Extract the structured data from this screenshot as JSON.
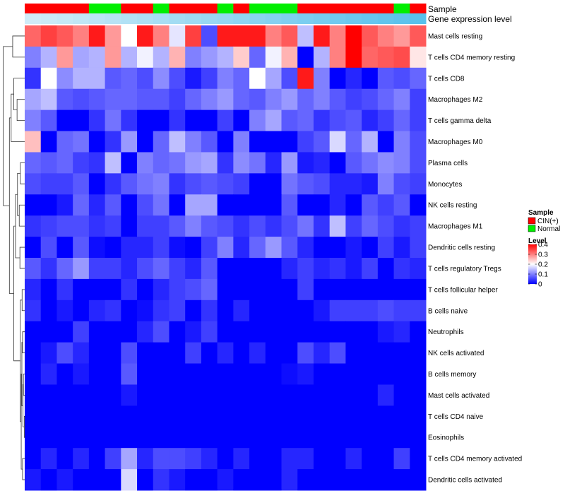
{
  "chart_data": {
    "type": "heatmap",
    "annotation_tracks": [
      {
        "key": "sample",
        "label": "Sample"
      },
      {
        "key": "gene",
        "label": "Gene expression level"
      }
    ],
    "rows": [
      "Mast cells resting",
      "T cells CD4 memory resting",
      "T cells CD8",
      "Macrophages M2",
      "T cells gamma delta",
      "Macrophages M0",
      "Plasma cells",
      "Monocytes",
      "NK cells resting",
      "Macrophages M1",
      "Dendritic cells resting",
      "T cells regulatory  Tregs",
      "T cells follicular helper",
      "B cells naive",
      "Neutrophils",
      "NK cells activated",
      "B cells memory",
      "Mast cells activated",
      "T cells CD4 naive",
      "Eosinophils",
      "T cells CD4 memory activated",
      "Dendritic cells activated"
    ],
    "sample_groups": [
      "CIN(+)",
      "CIN(+)",
      "CIN(+)",
      "CIN(+)",
      "Normal",
      "Normal",
      "CIN(+)",
      "CIN(+)",
      "Normal",
      "CIN(+)",
      "CIN(+)",
      "CIN(+)",
      "Normal",
      "CIN(+)",
      "Normal",
      "Normal",
      "Normal",
      "CIN(+)",
      "CIN(+)",
      "CIN(+)",
      "CIN(+)",
      "CIN(+)",
      "CIN(+)",
      "Normal",
      "CIN(+)"
    ],
    "gene_expression_levels": [
      0.02,
      0.06,
      0.1,
      0.14,
      0.18,
      0.22,
      0.26,
      0.3,
      0.34,
      0.38,
      0.42,
      0.46,
      0.5,
      0.54,
      0.58,
      0.62,
      0.66,
      0.7,
      0.74,
      0.78,
      0.82,
      0.86,
      0.9,
      0.94,
      0.98
    ],
    "values": [
      [
        0.32,
        0.35,
        0.33,
        0.3,
        0.38,
        0.28,
        0.2,
        0.38,
        0.3,
        0.18,
        0.35,
        0.06,
        0.38,
        0.38,
        0.38,
        0.3,
        0.33,
        0.15,
        0.38,
        0.3,
        0.4,
        0.33,
        0.3,
        0.28,
        0.33
      ],
      [
        0.1,
        0.14,
        0.28,
        0.13,
        0.14,
        0.28,
        0.14,
        0.19,
        0.14,
        0.26,
        0.1,
        0.12,
        0.14,
        0.24,
        0.08,
        0.19,
        0.26,
        0.0,
        0.14,
        0.3,
        0.4,
        0.32,
        0.33,
        0.34,
        0.22
      ],
      [
        0.04,
        0.2,
        0.11,
        0.14,
        0.14,
        0.07,
        0.08,
        0.06,
        0.11,
        0.06,
        0.02,
        0.05,
        0.1,
        0.08,
        0.2,
        0.13,
        0.06,
        0.38,
        0.1,
        0.0,
        0.03,
        0.0,
        0.07,
        0.06,
        0.08
      ],
      [
        0.13,
        0.15,
        0.07,
        0.06,
        0.07,
        0.08,
        0.08,
        0.07,
        0.07,
        0.05,
        0.08,
        0.1,
        0.12,
        0.08,
        0.07,
        0.1,
        0.12,
        0.08,
        0.1,
        0.07,
        0.05,
        0.06,
        0.08,
        0.1,
        0.05
      ],
      [
        0.1,
        0.07,
        0.0,
        0.0,
        0.04,
        0.09,
        0.04,
        0.0,
        0.0,
        0.04,
        0.0,
        0.0,
        0.05,
        0.0,
        0.1,
        0.13,
        0.07,
        0.08,
        0.04,
        0.06,
        0.07,
        0.03,
        0.05,
        0.08,
        0.05
      ],
      [
        0.25,
        0.0,
        0.08,
        0.09,
        0.0,
        0.04,
        0.12,
        0.0,
        0.08,
        0.15,
        0.1,
        0.07,
        0.0,
        0.1,
        0.0,
        0.0,
        0.0,
        0.05,
        0.07,
        0.17,
        0.08,
        0.14,
        0.0,
        0.1,
        0.06
      ],
      [
        0.08,
        0.07,
        0.08,
        0.05,
        0.04,
        0.15,
        0.0,
        0.1,
        0.08,
        0.09,
        0.12,
        0.13,
        0.04,
        0.11,
        0.09,
        0.03,
        0.12,
        0.02,
        0.03,
        0.0,
        0.07,
        0.09,
        0.11,
        0.1,
        0.06
      ],
      [
        0.06,
        0.05,
        0.05,
        0.07,
        0.0,
        0.04,
        0.07,
        0.09,
        0.1,
        0.04,
        0.06,
        0.07,
        0.06,
        0.05,
        0.0,
        0.0,
        0.09,
        0.07,
        0.06,
        0.03,
        0.03,
        0.02,
        0.1,
        0.06,
        0.05
      ],
      [
        0.0,
        0.0,
        0.02,
        0.08,
        0.03,
        0.07,
        0.0,
        0.06,
        0.09,
        0.0,
        0.13,
        0.13,
        0.0,
        0.0,
        0.0,
        0.0,
        0.07,
        0.0,
        0.0,
        0.03,
        0.0,
        0.07,
        0.05,
        0.07,
        0.0
      ],
      [
        0.04,
        0.05,
        0.06,
        0.06,
        0.04,
        0.05,
        0.0,
        0.05,
        0.05,
        0.07,
        0.1,
        0.07,
        0.06,
        0.04,
        0.06,
        0.04,
        0.06,
        0.09,
        0.04,
        0.15,
        0.05,
        0.08,
        0.06,
        0.04,
        0.05
      ],
      [
        0.0,
        0.06,
        0.0,
        0.07,
        0.01,
        0.0,
        0.03,
        0.03,
        0.05,
        0.01,
        0.0,
        0.05,
        0.1,
        0.03,
        0.08,
        0.12,
        0.07,
        0.03,
        0.0,
        0.0,
        0.02,
        0.0,
        0.05,
        0.02,
        0.05
      ],
      [
        0.07,
        0.04,
        0.08,
        0.12,
        0.05,
        0.05,
        0.03,
        0.06,
        0.08,
        0.05,
        0.03,
        0.07,
        0.0,
        0.0,
        0.0,
        0.0,
        0.03,
        0.05,
        0.03,
        0.04,
        0.02,
        0.05,
        0.0,
        0.04,
        0.03
      ],
      [
        0.03,
        0.0,
        0.04,
        0.0,
        0.0,
        0.0,
        0.04,
        0.0,
        0.03,
        0.05,
        0.06,
        0.08,
        0.0,
        0.0,
        0.0,
        0.0,
        0.0,
        0.05,
        0.0,
        0.0,
        0.0,
        0.0,
        0.0,
        0.0,
        0.0
      ],
      [
        0.04,
        0.0,
        0.02,
        0.0,
        0.03,
        0.04,
        0.0,
        0.01,
        0.04,
        0.05,
        0.0,
        0.04,
        0.0,
        0.03,
        0.0,
        0.0,
        0.0,
        0.0,
        0.02,
        0.05,
        0.05,
        0.05,
        0.06,
        0.05,
        0.05
      ],
      [
        0.0,
        0.0,
        0.0,
        0.05,
        0.0,
        0.0,
        0.0,
        0.03,
        0.06,
        0.0,
        0.02,
        0.05,
        0.0,
        0.0,
        0.0,
        0.0,
        0.0,
        0.0,
        0.0,
        0.0,
        0.0,
        0.0,
        0.02,
        0.03,
        0.0
      ],
      [
        0.0,
        0.02,
        0.06,
        0.03,
        0.0,
        0.0,
        0.06,
        0.0,
        0.0,
        0.0,
        0.05,
        0.0,
        0.03,
        0.0,
        0.03,
        0.0,
        0.0,
        0.06,
        0.03,
        0.06,
        0.0,
        0.0,
        0.0,
        0.0,
        0.0
      ],
      [
        0.0,
        0.03,
        0.0,
        0.02,
        0.0,
        0.0,
        0.07,
        0.0,
        0.0,
        0.0,
        0.0,
        0.0,
        0.0,
        0.0,
        0.0,
        0.0,
        0.01,
        0.02,
        0.0,
        0.0,
        0.0,
        0.0,
        0.0,
        0.0,
        0.0
      ],
      [
        0.0,
        0.0,
        0.0,
        0.0,
        0.0,
        0.0,
        0.02,
        0.0,
        0.0,
        0.0,
        0.0,
        0.0,
        0.0,
        0.0,
        0.0,
        0.0,
        0.0,
        0.0,
        0.0,
        0.0,
        0.0,
        0.0,
        0.03,
        0.0,
        0.0
      ],
      [
        0.0,
        0.0,
        0.0,
        0.0,
        0.0,
        0.0,
        0.0,
        0.0,
        0.0,
        0.0,
        0.0,
        0.0,
        0.0,
        0.0,
        0.0,
        0.0,
        0.0,
        0.0,
        0.0,
        0.0,
        0.0,
        0.0,
        0.0,
        0.0,
        0.0
      ],
      [
        0.0,
        0.0,
        0.0,
        0.0,
        0.0,
        0.0,
        0.0,
        0.0,
        0.0,
        0.0,
        0.0,
        0.0,
        0.0,
        0.0,
        0.0,
        0.0,
        0.0,
        0.0,
        0.0,
        0.0,
        0.0,
        0.0,
        0.0,
        0.0,
        0.0
      ],
      [
        0.0,
        0.03,
        0.0,
        0.03,
        0.0,
        0.05,
        0.13,
        0.03,
        0.06,
        0.06,
        0.05,
        0.03,
        0.0,
        0.03,
        0.0,
        0.0,
        0.03,
        0.03,
        0.0,
        0.0,
        0.03,
        0.0,
        0.0,
        0.05,
        0.0
      ],
      [
        0.02,
        0.0,
        0.02,
        0.0,
        0.0,
        0.0,
        0.17,
        0.0,
        0.04,
        0.02,
        0.0,
        0.0,
        0.02,
        0.0,
        0.0,
        0.0,
        0.03,
        0.0,
        0.0,
        0.0,
        0.0,
        0.0,
        0.0,
        0.0,
        0.0
      ]
    ],
    "legend_sample": {
      "title": "Sample",
      "entries": [
        {
          "label": "CIN(+)",
          "color": "#ff0000"
        },
        {
          "label": "Normal",
          "color": "#00ee00"
        }
      ]
    },
    "legend_level": {
      "title": "Level",
      "ticks": [
        "0.4",
        "0.3",
        "0.2",
        "0.1",
        "0"
      ],
      "tick_values": [
        0.4,
        0.3,
        0.2,
        0.1,
        0.0
      ],
      "range": [
        0,
        0.4
      ]
    },
    "color_scale": {
      "low": "#0000ff",
      "mid": "#ffffff",
      "high": "#ff0000",
      "low_value": 0,
      "mid_value": 0.2,
      "high_value": 0.4
    },
    "gene_level_colors": {
      "low": "#d3edf8",
      "high": "#55c0ec"
    },
    "dendrogram": "left"
  }
}
